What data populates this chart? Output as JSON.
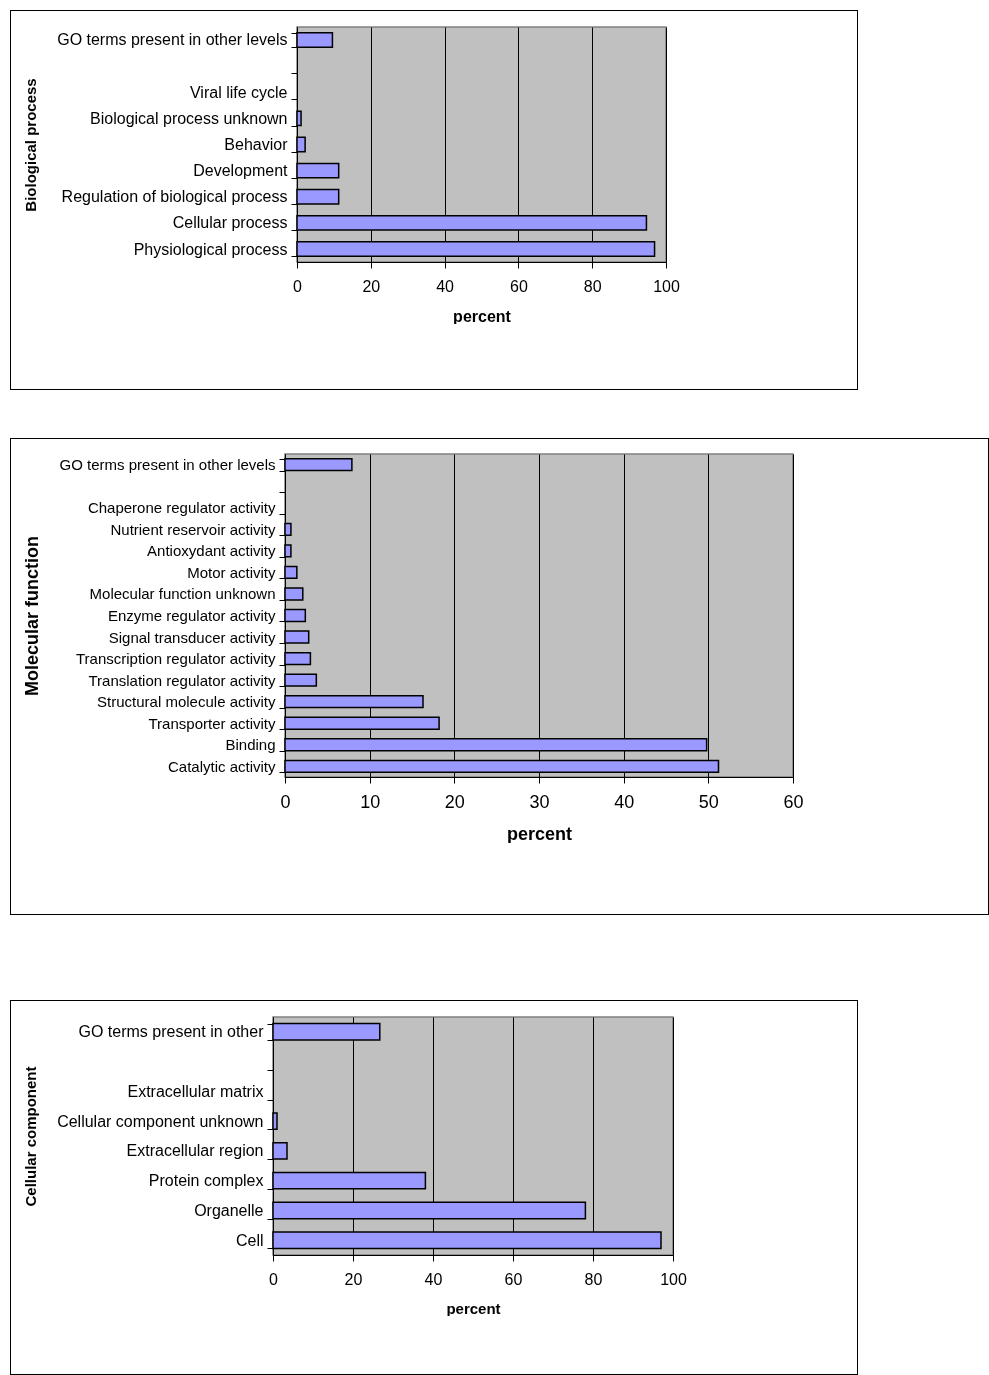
{
  "chart_data": [
    {
      "type": "bar",
      "orientation": "horizontal",
      "ylabel": "Biological process",
      "xlabel": "percent",
      "categories": [
        "GO terms present in other levels",
        null,
        "Viral life cycle",
        "Biological process unknown",
        "Behavior",
        "Development",
        "Regulation of biological process",
        "Cellular process",
        "Physiological process"
      ],
      "values": [
        9.6,
        0,
        0,
        1.1,
        2.2,
        11.3,
        11.3,
        94.7,
        96.9
      ],
      "color": "#9999ff",
      "xlim": [
        0,
        100
      ],
      "xticks": [
        0,
        20,
        40,
        60,
        80,
        100
      ],
      "grid": "x"
    },
    {
      "type": "bar",
      "orientation": "horizontal",
      "ylabel": "Molecular function",
      "xlabel": "percent",
      "categories": [
        "GO terms present in other levels",
        null,
        "Chaperone regulator activity",
        "Nutrient reservoir activity",
        "Antioxydant activity",
        "Motor activity",
        "Molecular function unknown",
        "Enzyme regulator activity",
        "Signal transducer activity",
        "Transcription regulator activity",
        "Translation regulator activity",
        "Structural molecule activity",
        "Transporter activity",
        "Binding",
        "Catalytic activity"
      ],
      "values": [
        7.9,
        0,
        0,
        0.7,
        0.7,
        1.4,
        2.1,
        2.4,
        2.8,
        3.0,
        3.7,
        16.3,
        18.2,
        49.8,
        51.2
      ],
      "color": "#9999ff",
      "xlim": [
        0,
        60
      ],
      "xticks": [
        0,
        10,
        20,
        30,
        40,
        50,
        60
      ],
      "grid": "x"
    },
    {
      "type": "bar",
      "orientation": "horizontal",
      "ylabel": "Cellular component",
      "xlabel": "percent",
      "categories": [
        "GO terms present in other",
        null,
        "Extracellular matrix",
        "Cellular component unknown",
        "Extracellular region",
        "Protein complex",
        "Organelle",
        "Cell"
      ],
      "values": [
        26.7,
        0,
        0,
        1.0,
        3.5,
        38.1,
        78.1,
        97.0
      ],
      "color": "#9999ff",
      "xlim": [
        0,
        100
      ],
      "xticks": [
        0,
        20,
        40,
        60,
        80,
        100
      ],
      "grid": "x"
    }
  ]
}
